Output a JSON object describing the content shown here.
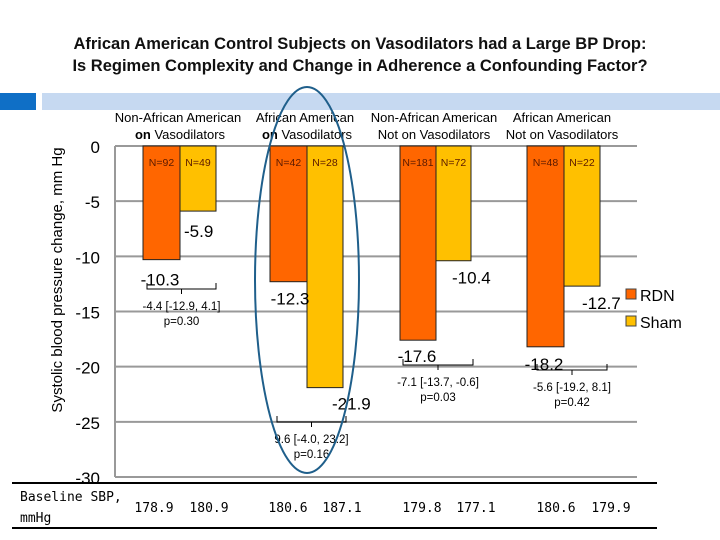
{
  "title_line1": "African American Control Subjects on Vasodilators had a Large BP Drop:",
  "title_line2": "Is Regimen Complexity and Change in Adherence a Confounding Factor?",
  "chart_data": {
    "type": "bar",
    "ylabel": "Systolic blood pressure change, mm Hg",
    "ylim": [
      -30,
      0
    ],
    "yticks": [
      "0",
      "-5",
      "-10",
      "-15",
      "-20",
      "-25",
      "-30"
    ],
    "grid": true,
    "legend_position": "right",
    "colors": {
      "RDN": "#ff6600",
      "Sham": "#ffc000",
      "highlight": "#1f5f8b"
    },
    "categories": [
      {
        "line1": "Non-African American",
        "line2_bold": "on",
        "line2": " Vasodilators"
      },
      {
        "line1": "African American",
        "line2_bold": "on",
        "line2": " Vasodilators"
      },
      {
        "line1": "Non-African American",
        "line2_bold": "",
        "line2": "Not on Vasodilators"
      },
      {
        "line1": "African American",
        "line2_bold": "",
        "line2": "Not on Vasodilators"
      }
    ],
    "series": [
      {
        "name": "RDN",
        "values": [
          -10.3,
          -12.3,
          -17.6,
          -18.2
        ],
        "labels": [
          "-10.3",
          "-12.3",
          "-17.6",
          "-18.2"
        ],
        "n": [
          "N=92",
          "N=42",
          "N=181",
          "N=48"
        ]
      },
      {
        "name": "Sham",
        "values": [
          -5.9,
          -21.9,
          -10.4,
          -12.7
        ],
        "labels": [
          "-5.9",
          "-21.9",
          "-10.4",
          "-12.7"
        ],
        "n": [
          "N=49",
          "N=28",
          "N=72",
          "N=22"
        ]
      }
    ],
    "differences": [
      {
        "ci": "-4.4 [-12.9, 4.1]",
        "p": "p=0.30"
      },
      {
        "ci": "9.6 [-4.0, 23.2]",
        "p": "p=0.16"
      },
      {
        "ci": "-7.1 [-13.7, -0.6]",
        "p": "p=0.03"
      },
      {
        "ci": "-5.6 [-19.2, 8.1]",
        "p": "p=0.42"
      }
    ],
    "highlighted_group": 1
  },
  "baseline": {
    "label_line1": "Baseline SBP,",
    "label_line2": "mmHg",
    "values": [
      "178.9",
      "180.9",
      "180.6",
      "187.1",
      "179.8",
      "177.1",
      "180.6",
      "179.9"
    ]
  }
}
